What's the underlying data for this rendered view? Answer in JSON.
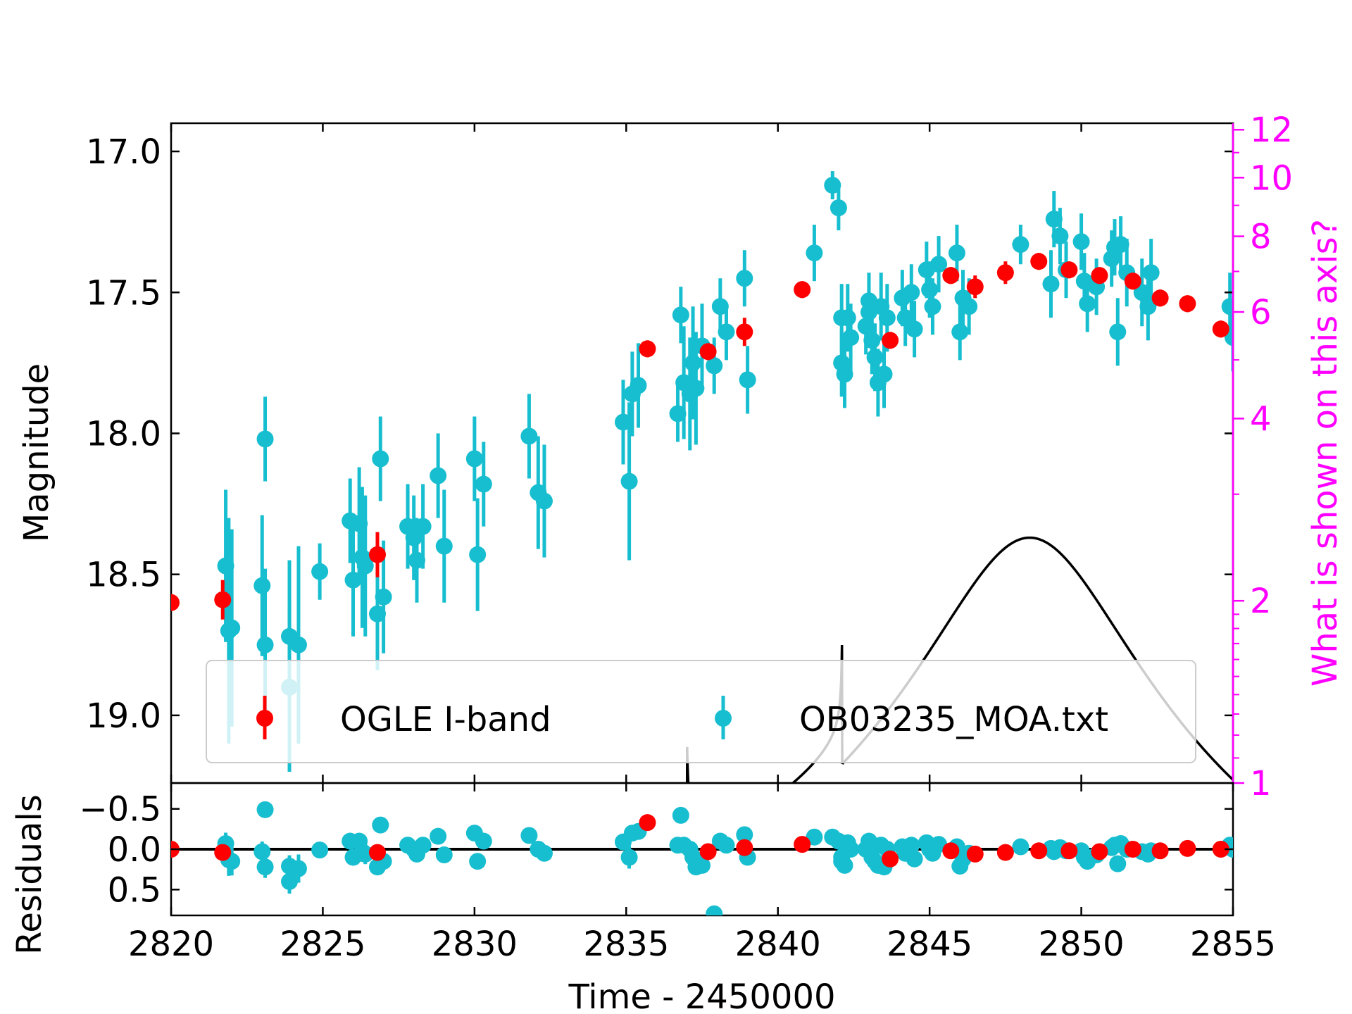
{
  "colors": {
    "ogle": "#ff0000",
    "moa": "#17becf",
    "model": "#000000",
    "right_axis": "#ff00ff",
    "legend_border": "#cccccc"
  },
  "chart_data": {
    "type": "scatter",
    "xlabel": "Time - 2450000",
    "xlim": [
      2820,
      2855
    ],
    "x_ticks": [
      2820,
      2825,
      2830,
      2835,
      2840,
      2845,
      2850,
      2855
    ],
    "main": {
      "ylabel": "Magnitude",
      "ylim": [
        19.24,
        16.9
      ],
      "y_inverted": true,
      "y_ticks": [
        17.0,
        17.5,
        18.0,
        18.5,
        19.0
      ],
      "y_tick_labels": [
        "17.0",
        "17.5",
        "18.0",
        "18.5",
        "19.0"
      ]
    },
    "right_axis": {
      "label": "What is shown on this axis?",
      "scale": "log",
      "range": [
        1,
        12.3
      ],
      "ticks": [
        1,
        2,
        4,
        6,
        8,
        10,
        12
      ],
      "minor_ticks": [
        3,
        5,
        7,
        9,
        11
      ]
    },
    "residuals": {
      "ylabel": "Residuals",
      "ylim": [
        0.82,
        -0.82
      ],
      "y_inverted": true,
      "y_ticks": [
        -0.5,
        0.0,
        0.5
      ],
      "y_tick_labels": [
        "−0.5",
        "0.0",
        "0.5"
      ]
    },
    "legend": {
      "placement": "lower-center",
      "entries": [
        "OGLE I-band",
        "OB03235_MOA.txt"
      ]
    },
    "series": [
      {
        "name": "OGLE I-band",
        "points": [
          [
            2820.0,
            18.6,
            0.03,
            0.0
          ],
          [
            2821.7,
            18.59,
            0.07,
            0.04
          ],
          [
            2826.8,
            18.43,
            0.08,
            0.04
          ],
          [
            2835.7,
            17.7,
            0.03,
            -0.33
          ],
          [
            2837.7,
            17.71,
            0.03,
            0.03
          ],
          [
            2838.9,
            17.64,
            0.05,
            -0.02
          ],
          [
            2840.8,
            17.49,
            0.03,
            -0.06
          ],
          [
            2843.7,
            17.67,
            0.03,
            0.12
          ],
          [
            2845.7,
            17.44,
            0.03,
            0.02
          ],
          [
            2846.5,
            17.48,
            0.04,
            0.06
          ],
          [
            2847.5,
            17.43,
            0.04,
            0.04
          ],
          [
            2848.6,
            17.39,
            0.03,
            0.02
          ],
          [
            2849.6,
            17.42,
            0.03,
            0.02
          ],
          [
            2850.6,
            17.44,
            0.03,
            0.03
          ],
          [
            2851.7,
            17.46,
            0.03,
            0.0
          ],
          [
            2852.6,
            17.52,
            0.03,
            0.02
          ],
          [
            2853.5,
            17.54,
            0.03,
            -0.01
          ],
          [
            2854.6,
            17.63,
            0.03,
            0.0
          ]
        ]
      },
      {
        "name": "OB03235_MOA.txt",
        "points": [
          [
            2821.8,
            18.47,
            0.27,
            -0.07
          ],
          [
            2821.9,
            18.7,
            0.4,
            0.13
          ],
          [
            2822.0,
            18.69,
            0.35,
            0.15
          ],
          [
            2823.0,
            18.54,
            0.25,
            0.03
          ],
          [
            2823.1,
            18.75,
            0.27,
            0.22
          ],
          [
            2823.1,
            18.02,
            0.15,
            -0.49
          ],
          [
            2823.9,
            18.72,
            0.27,
            0.21
          ],
          [
            2823.9,
            18.9,
            0.3,
            0.4
          ],
          [
            2824.2,
            18.75,
            0.35,
            0.24
          ],
          [
            2824.9,
            18.49,
            0.1,
            0.01
          ],
          [
            2825.9,
            18.31,
            0.15,
            -0.1
          ],
          [
            2826.0,
            18.52,
            0.2,
            0.1
          ],
          [
            2826.2,
            18.32,
            0.2,
            -0.1
          ],
          [
            2826.3,
            18.44,
            0.25,
            0.03
          ],
          [
            2826.4,
            18.47,
            0.25,
            0.06
          ],
          [
            2826.8,
            18.64,
            0.2,
            0.22
          ],
          [
            2826.9,
            18.09,
            0.15,
            -0.3
          ],
          [
            2827.0,
            18.58,
            0.2,
            0.15
          ],
          [
            2827.8,
            18.33,
            0.15,
            -0.05
          ],
          [
            2828.0,
            18.37,
            0.15,
            0.0
          ],
          [
            2828.1,
            18.45,
            0.15,
            0.06
          ],
          [
            2828.3,
            18.33,
            0.15,
            -0.05
          ],
          [
            2828.8,
            18.15,
            0.15,
            -0.16
          ],
          [
            2829.0,
            18.4,
            0.2,
            0.07
          ],
          [
            2830.0,
            18.09,
            0.15,
            -0.2
          ],
          [
            2830.1,
            18.43,
            0.2,
            0.15
          ],
          [
            2830.3,
            18.18,
            0.15,
            -0.1
          ],
          [
            2831.8,
            18.01,
            0.15,
            -0.17
          ],
          [
            2832.1,
            18.21,
            0.2,
            0.0
          ],
          [
            2832.3,
            18.24,
            0.2,
            0.05
          ],
          [
            2834.9,
            17.96,
            0.15,
            -0.09
          ],
          [
            2835.1,
            18.17,
            0.28,
            0.1
          ],
          [
            2835.2,
            17.86,
            0.15,
            -0.2
          ],
          [
            2835.4,
            17.83,
            0.15,
            -0.22
          ],
          [
            2836.7,
            17.93,
            0.1,
            -0.05
          ],
          [
            2836.8,
            17.58,
            0.1,
            -0.42
          ],
          [
            2836.9,
            17.82,
            0.2,
            -0.05
          ],
          [
            2837.1,
            17.86,
            0.2,
            0.0
          ],
          [
            2837.2,
            17.75,
            0.2,
            0.1
          ],
          [
            2837.3,
            17.84,
            0.2,
            0.22
          ],
          [
            2837.5,
            17.69,
            0.15,
            0.2
          ],
          [
            2837.9,
            17.76,
            0.1,
            0.8
          ],
          [
            2838.1,
            17.55,
            0.1,
            -0.1
          ],
          [
            2838.3,
            17.64,
            0.1,
            -0.05
          ],
          [
            2838.9,
            17.45,
            0.1,
            -0.18
          ],
          [
            2839.0,
            17.81,
            0.12,
            0.1
          ],
          [
            2841.2,
            17.36,
            0.1,
            -0.15
          ],
          [
            2841.8,
            17.12,
            0.05,
            -0.15
          ],
          [
            2842.0,
            17.2,
            0.08,
            -0.1
          ],
          [
            2842.1,
            17.59,
            0.12,
            0.1
          ],
          [
            2842.1,
            17.75,
            0.12,
            0.15
          ],
          [
            2842.2,
            17.79,
            0.12,
            0.2
          ],
          [
            2842.3,
            17.59,
            0.12,
            -0.08
          ],
          [
            2842.4,
            17.66,
            0.12,
            0.0
          ],
          [
            2842.9,
            17.62,
            0.1,
            0.0
          ],
          [
            2843.0,
            17.57,
            0.1,
            -0.05
          ],
          [
            2843.0,
            17.53,
            0.1,
            -0.1
          ],
          [
            2843.1,
            17.67,
            0.12,
            0.1
          ],
          [
            2843.2,
            17.73,
            0.12,
            0.15
          ],
          [
            2843.3,
            17.82,
            0.12,
            0.2
          ],
          [
            2843.4,
            17.55,
            0.12,
            -0.05
          ],
          [
            2843.5,
            17.79,
            0.12,
            0.22
          ],
          [
            2843.6,
            17.59,
            0.12,
            0.0
          ],
          [
            2844.1,
            17.52,
            0.1,
            -0.03
          ],
          [
            2844.2,
            17.59,
            0.1,
            0.05
          ],
          [
            2844.4,
            17.5,
            0.1,
            -0.05
          ],
          [
            2844.5,
            17.63,
            0.1,
            0.12
          ],
          [
            2844.9,
            17.42,
            0.1,
            -0.08
          ],
          [
            2845.0,
            17.49,
            0.1,
            0.0
          ],
          [
            2845.1,
            17.55,
            0.1,
            0.05
          ],
          [
            2845.3,
            17.4,
            0.1,
            -0.06
          ],
          [
            2845.9,
            17.36,
            0.1,
            -0.03
          ],
          [
            2846.0,
            17.64,
            0.1,
            0.21
          ],
          [
            2846.1,
            17.52,
            0.1,
            0.12
          ],
          [
            2846.3,
            17.55,
            0.1,
            0.05
          ],
          [
            2848.0,
            17.33,
            0.07,
            -0.03
          ],
          [
            2849.0,
            17.47,
            0.12,
            -0.01
          ],
          [
            2849.1,
            17.24,
            0.1,
            0.03
          ],
          [
            2849.3,
            17.3,
            0.1,
            -0.02
          ],
          [
            2849.5,
            17.42,
            0.1,
            0.02
          ],
          [
            2850.0,
            17.32,
            0.1,
            0.02
          ],
          [
            2850.1,
            17.46,
            0.1,
            0.1
          ],
          [
            2850.2,
            17.54,
            0.1,
            0.15
          ],
          [
            2850.5,
            17.48,
            0.1,
            0.07
          ],
          [
            2851.0,
            17.38,
            0.1,
            -0.02
          ],
          [
            2851.1,
            17.34,
            0.1,
            -0.05
          ],
          [
            2851.2,
            17.64,
            0.12,
            0.18
          ],
          [
            2851.3,
            17.33,
            0.1,
            -0.07
          ],
          [
            2851.5,
            17.43,
            0.12,
            0.0
          ],
          [
            2852.0,
            17.5,
            0.12,
            0.03
          ],
          [
            2852.2,
            17.55,
            0.12,
            0.06
          ],
          [
            2852.3,
            17.43,
            0.12,
            0.02
          ],
          [
            2854.9,
            17.55,
            0.12,
            -0.05
          ],
          [
            2855.0,
            17.66,
            0.12,
            0.0
          ]
        ]
      }
    ]
  }
}
